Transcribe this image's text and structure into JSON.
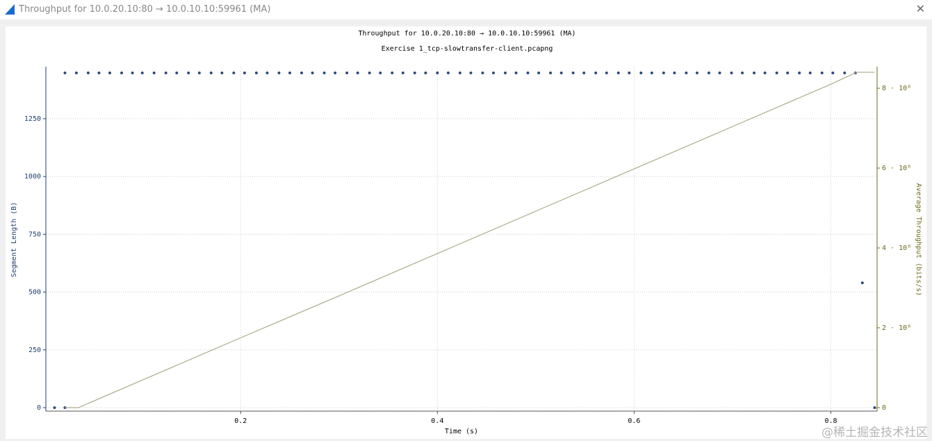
{
  "window": {
    "title": "Throughput for 10.0.20.10:80 → 10.0.10.10:59961 (MA)"
  },
  "watermark": "@稀土掘金技术社区",
  "chart_data": {
    "type": "scatter-line",
    "title": "Throughput for 10.0.20.10:80 → 10.0.10.10:59961 (MA)",
    "subtitle": "Exercise 1_tcp-slowtransfer-client.pcapng",
    "x_label": "Time (s)",
    "y_label": "Segment Length (B)",
    "y2_label": "Average Throughput (bits/s)",
    "xlim": [
      0.002,
      0.847
    ],
    "xticks": [
      0.2,
      0.4,
      0.6,
      0.8
    ],
    "ylim": [
      -15,
      1475
    ],
    "yticks": [
      0,
      250,
      500,
      750,
      1000,
      1250
    ],
    "y2lim": [
      -87000,
      8540000
    ],
    "y2ticks": [
      0,
      {
        "value": 2000000,
        "label": "2 · 10⁶"
      },
      {
        "value": 4000000,
        "label": "4 · 10⁶"
      },
      {
        "value": 6000000,
        "label": "6 · 10⁶"
      },
      {
        "value": 8000000,
        "label": "8 · 10⁶"
      }
    ],
    "grid": true,
    "series": [
      {
        "name": "Segment Length",
        "type": "scatter",
        "color": "#2b4a7a",
        "x": [
          0.0108,
          0.0214,
          0.0214,
          0.033,
          0.045,
          0.056,
          0.067,
          0.079,
          0.09,
          0.1,
          0.112,
          0.124,
          0.135,
          0.147,
          0.158,
          0.17,
          0.181,
          0.193,
          0.204,
          0.216,
          0.227,
          0.239,
          0.25,
          0.262,
          0.273,
          0.285,
          0.296,
          0.308,
          0.319,
          0.331,
          0.342,
          0.354,
          0.365,
          0.377,
          0.388,
          0.4,
          0.411,
          0.423,
          0.434,
          0.446,
          0.457,
          0.469,
          0.48,
          0.492,
          0.503,
          0.515,
          0.526,
          0.538,
          0.549,
          0.561,
          0.572,
          0.584,
          0.595,
          0.607,
          0.618,
          0.63,
          0.641,
          0.653,
          0.664,
          0.676,
          0.687,
          0.699,
          0.71,
          0.722,
          0.733,
          0.745,
          0.756,
          0.768,
          0.779,
          0.791,
          0.802,
          0.814,
          0.825,
          0.832,
          0.8445
        ],
        "values": [
          0,
          0,
          1448,
          1448,
          1448,
          1448,
          1448,
          1448,
          1448,
          1448,
          1448,
          1448,
          1448,
          1448,
          1448,
          1448,
          1448,
          1448,
          1448,
          1448,
          1448,
          1448,
          1448,
          1448,
          1448,
          1448,
          1448,
          1448,
          1448,
          1448,
          1448,
          1448,
          1448,
          1448,
          1448,
          1448,
          1448,
          1448,
          1448,
          1448,
          1448,
          1448,
          1448,
          1448,
          1448,
          1448,
          1448,
          1448,
          1448,
          1448,
          1448,
          1448,
          1448,
          1448,
          1448,
          1448,
          1448,
          1448,
          1448,
          1448,
          1448,
          1448,
          1448,
          1448,
          1448,
          1448,
          1448,
          1448,
          1448,
          1448,
          1448,
          1448,
          1448,
          540,
          0
        ]
      },
      {
        "name": "Average Throughput",
        "type": "line",
        "axis": "y2",
        "color": "#a9ab8c",
        "x": [
          0.0214,
          0.035,
          0.1,
          0.2,
          0.3,
          0.4,
          0.5,
          0.6,
          0.7,
          0.8,
          0.826,
          0.8445
        ],
        "values": [
          0,
          0,
          690000,
          1750000,
          2800000,
          3860000,
          4920000,
          5980000,
          7040000,
          8100000,
          8400000,
          8400000
        ]
      }
    ]
  }
}
